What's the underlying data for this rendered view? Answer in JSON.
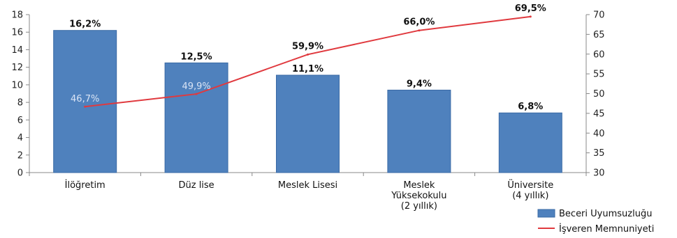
{
  "chart_data": {
    "type": "bar+line",
    "categories": [
      [
        "İlöğretim"
      ],
      [
        "Düz lise"
      ],
      [
        "Meslek Lisesi"
      ],
      [
        "Meslek",
        "Yüksekokulu",
        "(2 yıllık)"
      ],
      [
        "Üniversite",
        "(4 yıllık)"
      ]
    ],
    "series": [
      {
        "name": "Beceri Uyumsuzluğu",
        "type": "bar",
        "axis": "left",
        "values": [
          16.2,
          12.5,
          11.1,
          9.4,
          6.8
        ],
        "labels": [
          "16,2%",
          "12,5%",
          "11,1%",
          "9,4%",
          "6,8%"
        ],
        "color": "#4f81bd"
      },
      {
        "name": "İşveren Memnuniyeti",
        "type": "line",
        "axis": "right",
        "values": [
          46.7,
          49.9,
          59.9,
          66.0,
          69.5
        ],
        "labels": [
          "46,7%",
          "49,9%",
          "59,9%",
          "66,0%",
          "69,5%"
        ],
        "color": "#e0393e"
      }
    ],
    "y_left": {
      "min": 0,
      "max": 18,
      "ticks": [
        "0",
        "2",
        "4",
        "6",
        "8",
        "10",
        "12",
        "14",
        "16",
        "18"
      ]
    },
    "y_right": {
      "min": 30,
      "max": 70,
      "ticks": [
        "30",
        "35",
        "40",
        "45",
        "50",
        "55",
        "60",
        "65",
        "70"
      ]
    },
    "legend": "bottom-right",
    "grid": false
  }
}
